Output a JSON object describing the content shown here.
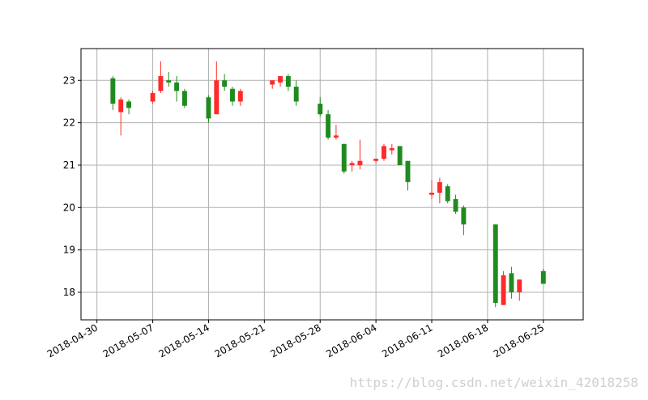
{
  "chart_data": {
    "type": "candlestick",
    "grid": true,
    "up_color": "#ff2a2a",
    "down_color": "#1f8b1f",
    "ylim": [
      17.35,
      23.75
    ],
    "xlim": [
      "2018-04-28",
      "2018-06-30"
    ],
    "yticks": [
      18,
      19,
      20,
      21,
      22,
      23
    ],
    "xticks": [
      "2018-04-30",
      "2018-05-07",
      "2018-05-14",
      "2018-05-21",
      "2018-05-28",
      "2018-06-04",
      "2018-06-11",
      "2018-06-18",
      "2018-06-25"
    ],
    "candles": [
      {
        "date": "2018-05-02",
        "open": 23.05,
        "high": 23.1,
        "low": 22.3,
        "close": 22.45
      },
      {
        "date": "2018-05-03",
        "open": 22.25,
        "high": 22.6,
        "low": 21.7,
        "close": 22.55
      },
      {
        "date": "2018-05-04",
        "open": 22.5,
        "high": 22.55,
        "low": 22.2,
        "close": 22.35
      },
      {
        "date": "2018-05-07",
        "open": 22.5,
        "high": 22.75,
        "low": 22.45,
        "close": 22.7
      },
      {
        "date": "2018-05-08",
        "open": 22.75,
        "high": 23.45,
        "low": 22.7,
        "close": 23.1
      },
      {
        "date": "2018-05-09",
        "open": 23.0,
        "high": 23.2,
        "low": 22.85,
        "close": 22.95
      },
      {
        "date": "2018-05-10",
        "open": 22.95,
        "high": 23.1,
        "low": 22.5,
        "close": 22.75
      },
      {
        "date": "2018-05-11",
        "open": 22.75,
        "high": 22.8,
        "low": 22.35,
        "close": 22.4
      },
      {
        "date": "2018-05-14",
        "open": 22.6,
        "high": 22.65,
        "low": 22.0,
        "close": 22.1
      },
      {
        "date": "2018-05-15",
        "open": 22.2,
        "high": 23.45,
        "low": 22.2,
        "close": 23.0
      },
      {
        "date": "2018-05-16",
        "open": 23.0,
        "high": 23.15,
        "low": 22.75,
        "close": 22.85
      },
      {
        "date": "2018-05-17",
        "open": 22.8,
        "high": 22.85,
        "low": 22.4,
        "close": 22.5
      },
      {
        "date": "2018-05-18",
        "open": 22.5,
        "high": 22.8,
        "low": 22.4,
        "close": 22.75
      },
      {
        "date": "2018-05-22",
        "open": 22.9,
        "high": 23.0,
        "low": 22.8,
        "close": 23.0
      },
      {
        "date": "2018-05-23",
        "open": 22.95,
        "high": 23.05,
        "low": 22.85,
        "close": 23.1
      },
      {
        "date": "2018-05-24",
        "open": 23.1,
        "high": 23.15,
        "low": 22.75,
        "close": 22.85
      },
      {
        "date": "2018-05-25",
        "open": 22.85,
        "high": 23.0,
        "low": 22.4,
        "close": 22.5
      },
      {
        "date": "2018-05-28",
        "open": 22.45,
        "high": 22.6,
        "low": 22.15,
        "close": 22.2
      },
      {
        "date": "2018-05-29",
        "open": 22.2,
        "high": 22.3,
        "low": 21.6,
        "close": 21.65
      },
      {
        "date": "2018-05-30",
        "open": 21.65,
        "high": 21.95,
        "low": 21.6,
        "close": 21.7
      },
      {
        "date": "2018-05-31",
        "open": 21.5,
        "high": 21.5,
        "low": 20.8,
        "close": 20.85
      },
      {
        "date": "2018-06-01",
        "open": 21.0,
        "high": 21.1,
        "low": 20.85,
        "close": 21.05
      },
      {
        "date": "2018-06-02",
        "open": 21.0,
        "high": 21.6,
        "low": 20.9,
        "close": 21.1
      },
      {
        "date": "2018-06-04",
        "open": 21.1,
        "high": 21.15,
        "low": 21.05,
        "close": 21.15
      },
      {
        "date": "2018-06-05",
        "open": 21.15,
        "high": 21.5,
        "low": 21.1,
        "close": 21.45
      },
      {
        "date": "2018-06-06",
        "open": 21.35,
        "high": 21.5,
        "low": 21.25,
        "close": 21.4
      },
      {
        "date": "2018-06-07",
        "open": 21.45,
        "high": 21.45,
        "low": 21.0,
        "close": 21.0
      },
      {
        "date": "2018-06-08",
        "open": 21.1,
        "high": 21.1,
        "low": 20.4,
        "close": 20.6
      },
      {
        "date": "2018-06-11",
        "open": 20.3,
        "high": 20.65,
        "low": 20.2,
        "close": 20.35
      },
      {
        "date": "2018-06-12",
        "open": 20.35,
        "high": 20.7,
        "low": 20.1,
        "close": 20.6
      },
      {
        "date": "2018-06-13",
        "open": 20.5,
        "high": 20.55,
        "low": 20.1,
        "close": 20.15
      },
      {
        "date": "2018-06-14",
        "open": 20.2,
        "high": 20.3,
        "low": 19.85,
        "close": 19.9
      },
      {
        "date": "2018-06-15",
        "open": 20.0,
        "high": 20.05,
        "low": 19.35,
        "close": 19.6
      },
      {
        "date": "2018-06-19",
        "open": 19.6,
        "high": 19.6,
        "low": 17.65,
        "close": 17.75
      },
      {
        "date": "2018-06-20",
        "open": 17.7,
        "high": 18.5,
        "low": 17.7,
        "close": 18.4
      },
      {
        "date": "2018-06-21",
        "open": 18.45,
        "high": 18.6,
        "low": 17.85,
        "close": 18.0
      },
      {
        "date": "2018-06-22",
        "open": 18.0,
        "high": 18.3,
        "low": 17.8,
        "close": 18.3
      },
      {
        "date": "2018-06-25",
        "open": 18.5,
        "high": 18.55,
        "low": 18.2,
        "close": 18.2
      }
    ]
  },
  "watermark": "https://blog.csdn.net/weixin_42018258"
}
